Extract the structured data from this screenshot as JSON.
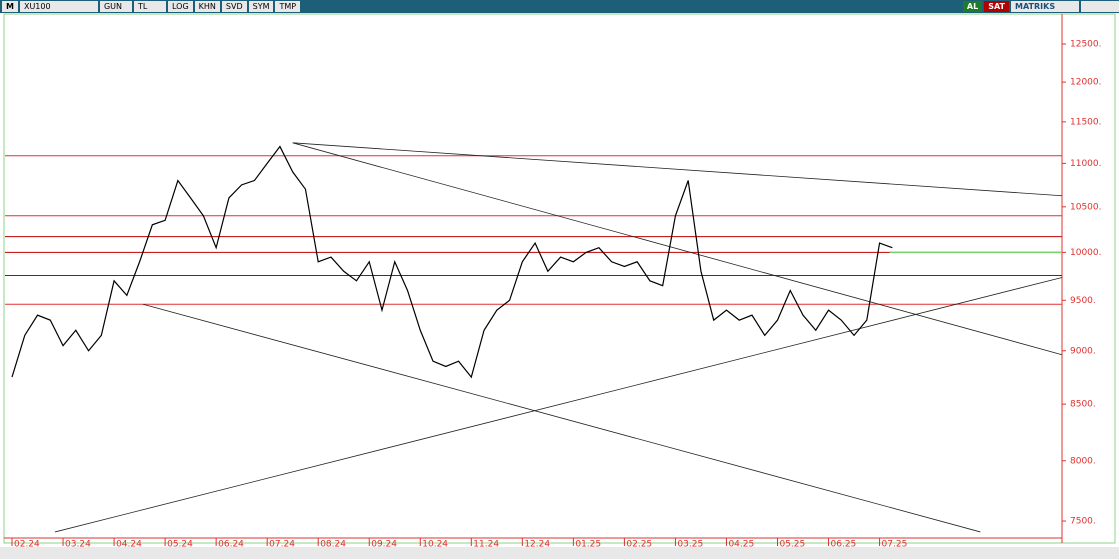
{
  "toolbar": {
    "logo": "M",
    "symbol": "XU100",
    "buttons": [
      "GUN",
      "TL",
      "LOG",
      "KHN",
      "SVD",
      "SYM",
      "TMP"
    ],
    "buy": "AL",
    "sell": "SAT",
    "brand": "MATRIKS"
  },
  "chart_data": {
    "type": "line",
    "color": "#000000",
    "log_scale": true,
    "categories": [
      "02.24",
      null,
      null,
      null,
      "03.24",
      null,
      null,
      null,
      "04.24",
      null,
      null,
      null,
      "05.24",
      null,
      null,
      null,
      "06.24",
      null,
      null,
      null,
      "07.24",
      null,
      null,
      null,
      "08.24",
      null,
      null,
      null,
      "09.24",
      null,
      null,
      null,
      "10.24",
      null,
      null,
      null,
      "11.24",
      null,
      null,
      null,
      "12.24",
      null,
      null,
      null,
      "01.25",
      null,
      null,
      null,
      "02.25",
      null,
      null,
      null,
      "03.25",
      null,
      null,
      null,
      "04.25",
      null,
      null,
      null,
      "05.25",
      null,
      null,
      null,
      "06.25",
      null,
      null,
      null,
      "07.25",
      null
    ],
    "xlim": [
      -0.55,
      82.3
    ],
    "series": [
      {
        "name": "XU100",
        "color": "#000000",
        "values": [
          8750,
          9150,
          9350,
          9300,
          9050,
          9200,
          9000,
          9150,
          9700,
          9550,
          9900,
          10300,
          10350,
          10800,
          10600,
          10400,
          10050,
          10600,
          10750,
          10800,
          11000,
          11200,
          10900,
          10700,
          9900,
          9950,
          9800,
          9700,
          9900,
          9400,
          9900,
          9600,
          9200,
          8900,
          8850,
          8900,
          8750,
          9200,
          9400,
          9500,
          9900,
          10100,
          9800,
          9950,
          9900,
          10000,
          10050,
          9900,
          9850,
          9900,
          9700,
          9650,
          10400,
          10800,
          9800,
          9300,
          9400,
          9300,
          9350,
          9150,
          9300,
          9600,
          9350,
          9200,
          9400,
          9300,
          9150,
          9300,
          10100,
          10050
        ]
      }
    ],
    "ylim": [
      7365,
      12908
    ],
    "yticks": [
      {
        "value": 7500,
        "label": "7500."
      },
      {
        "value": 8000,
        "label": "8000."
      },
      {
        "value": 8500,
        "label": "8500."
      },
      {
        "value": 9000,
        "label": "9000."
      },
      {
        "value": 9500,
        "label": "9500."
      },
      {
        "value": 10000,
        "label": "10000."
      },
      {
        "value": 10500,
        "label": "10500."
      },
      {
        "value": 11000,
        "label": "11000."
      },
      {
        "value": 11500,
        "label": "11500."
      },
      {
        "value": 12000,
        "label": "12000."
      },
      {
        "value": 12500,
        "label": "12500."
      }
    ],
    "horizontal_lines": [
      {
        "value": 11090,
        "color": "#e03030"
      },
      {
        "value": 10400,
        "color": "#e03030"
      },
      {
        "value": 10170,
        "color": "#c00000"
      },
      {
        "value": 10000,
        "color": "#c00000"
      },
      {
        "value": 9755,
        "color": "#c00000"
      },
      {
        "value": 9460,
        "color": "#e03030"
      }
    ],
    "support_line": {
      "value": 10000,
      "from": 68.8,
      "color": "#7ccf6a"
    },
    "trendlines": [
      {
        "from": [
          22.0,
          11245
        ],
        "to": [
          82.3,
          10625
        ]
      },
      {
        "from": [
          22.0,
          11245
        ],
        "to": [
          82.3,
          8962
        ]
      },
      {
        "from": [
          10.27,
          9460
        ],
        "to": [
          75.9,
          7413
        ]
      },
      {
        "from": [
          3.37,
          7413
        ],
        "to": [
          82.3,
          9735
        ]
      }
    ]
  }
}
